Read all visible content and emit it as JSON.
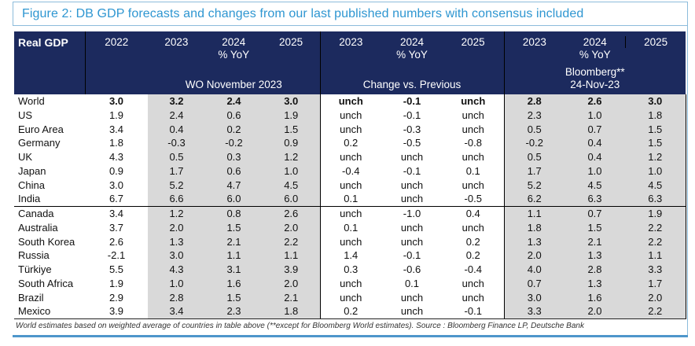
{
  "colors": {
    "header_bg": "#1c2a5e",
    "title_text": "#2e96d1",
    "frame_border": "#8cbcdb",
    "bottom_bar": "#4e96cb",
    "shaded_column": "#d9d9d9",
    "grid_line": "#000000"
  },
  "chart_data": {
    "type": "table",
    "title": "Figure 2: DB GDP forecasts and changes from our last published numbers with consensus included",
    "corner_label": "Real GDP",
    "column_2022": "2022",
    "groups": [
      {
        "years": [
          "2023",
          "2024",
          "2025"
        ],
        "unit": "% YoY",
        "label_lines": [
          "WO November 2023"
        ]
      },
      {
        "years": [
          "2023",
          "2024",
          "2025"
        ],
        "unit": "% YoY",
        "label_lines": [
          "Change vs. Previous"
        ]
      },
      {
        "years": [
          "2023",
          "2024",
          "2025"
        ],
        "unit": "% YoY",
        "label_lines": [
          "Bloomberg**",
          "24-Nov-23"
        ]
      }
    ],
    "rows": [
      {
        "country": "World",
        "bold": true,
        "y2022": "3.0",
        "wo_nov_2023": [
          "3.2",
          "2.4",
          "3.0"
        ],
        "change_vs_previous": [
          "unch",
          "-0.1",
          "unch"
        ],
        "bloomberg": [
          "2.8",
          "2.6",
          "3.0"
        ]
      },
      {
        "country": "US",
        "bold": false,
        "y2022": "1.9",
        "wo_nov_2023": [
          "2.4",
          "0.6",
          "1.9"
        ],
        "change_vs_previous": [
          "unch",
          "-0.1",
          "unch"
        ],
        "bloomberg": [
          "2.3",
          "1.0",
          "1.8"
        ]
      },
      {
        "country": "Euro Area",
        "bold": false,
        "y2022": "3.4",
        "wo_nov_2023": [
          "0.4",
          "0.2",
          "1.5"
        ],
        "change_vs_previous": [
          "unch",
          "-0.3",
          "unch"
        ],
        "bloomberg": [
          "0.5",
          "0.7",
          "1.5"
        ]
      },
      {
        "country": "Germany",
        "bold": false,
        "y2022": "1.8",
        "wo_nov_2023": [
          "-0.3",
          "-0.2",
          "0.9"
        ],
        "change_vs_previous": [
          "0.2",
          "-0.5",
          "-0.8"
        ],
        "bloomberg": [
          "-0.2",
          "0.4",
          "1.5"
        ]
      },
      {
        "country": "UK",
        "bold": false,
        "y2022": "4.3",
        "wo_nov_2023": [
          "0.5",
          "0.3",
          "1.2"
        ],
        "change_vs_previous": [
          "unch",
          "unch",
          "unch"
        ],
        "bloomberg": [
          "0.5",
          "0.4",
          "1.2"
        ]
      },
      {
        "country": "Japan",
        "bold": false,
        "y2022": "0.9",
        "wo_nov_2023": [
          "1.7",
          "0.6",
          "1.0"
        ],
        "change_vs_previous": [
          "-0.4",
          "-0.1",
          "0.1"
        ],
        "bloomberg": [
          "1.7",
          "1.0",
          "1.0"
        ]
      },
      {
        "country": "China",
        "bold": false,
        "y2022": "3.0",
        "wo_nov_2023": [
          "5.2",
          "4.7",
          "4.5"
        ],
        "change_vs_previous": [
          "unch",
          "unch",
          "unch"
        ],
        "bloomberg": [
          "5.2",
          "4.5",
          "4.5"
        ]
      },
      {
        "country": "India",
        "bold": false,
        "y2022": "6.7",
        "wo_nov_2023": [
          "6.6",
          "6.0",
          "6.0"
        ],
        "change_vs_previous": [
          "0.1",
          "unch",
          "-0.5"
        ],
        "bloomberg": [
          "6.2",
          "6.3",
          "6.3"
        ]
      },
      {
        "country": "Canada",
        "bold": false,
        "y2022": "3.4",
        "wo_nov_2023": [
          "1.2",
          "0.8",
          "2.6"
        ],
        "change_vs_previous": [
          "unch",
          "-1.0",
          "0.4"
        ],
        "bloomberg": [
          "1.1",
          "0.7",
          "1.9"
        ]
      },
      {
        "country": "Australia",
        "bold": false,
        "y2022": "3.7",
        "wo_nov_2023": [
          "2.0",
          "1.5",
          "2.0"
        ],
        "change_vs_previous": [
          "0.1",
          "unch",
          "unch"
        ],
        "bloomberg": [
          "1.8",
          "1.5",
          "2.2"
        ]
      },
      {
        "country": "South Korea",
        "bold": false,
        "y2022": "2.6",
        "wo_nov_2023": [
          "1.3",
          "2.1",
          "2.2"
        ],
        "change_vs_previous": [
          "unch",
          "unch",
          "0.2"
        ],
        "bloomberg": [
          "1.3",
          "2.1",
          "2.2"
        ]
      },
      {
        "country": "Russia",
        "bold": false,
        "y2022": "-2.1",
        "wo_nov_2023": [
          "3.0",
          "1.1",
          "1.1"
        ],
        "change_vs_previous": [
          "1.4",
          "-0.1",
          "0.2"
        ],
        "bloomberg": [
          "2.0",
          "1.3",
          "1.1"
        ]
      },
      {
        "country": "Türkiye",
        "bold": false,
        "y2022": "5.5",
        "wo_nov_2023": [
          "4.3",
          "3.1",
          "3.9"
        ],
        "change_vs_previous": [
          "0.3",
          "-0.6",
          "-0.4"
        ],
        "bloomberg": [
          "4.0",
          "2.8",
          "3.3"
        ]
      },
      {
        "country": "South Africa",
        "bold": false,
        "y2022": "1.9",
        "wo_nov_2023": [
          "1.0",
          "1.6",
          "2.0"
        ],
        "change_vs_previous": [
          "unch",
          "0.1",
          "unch"
        ],
        "bloomberg": [
          "0.7",
          "1.3",
          "1.7"
        ]
      },
      {
        "country": "Brazil",
        "bold": false,
        "y2022": "2.9",
        "wo_nov_2023": [
          "2.8",
          "1.5",
          "2.1"
        ],
        "change_vs_previous": [
          "unch",
          "unch",
          "unch"
        ],
        "bloomberg": [
          "3.0",
          "1.6",
          "2.0"
        ]
      },
      {
        "country": "Mexico",
        "bold": false,
        "y2022": "3.9",
        "wo_nov_2023": [
          "3.4",
          "2.3",
          "1.8"
        ],
        "change_vs_previous": [
          "0.2",
          "unch",
          "-0.1"
        ],
        "bloomberg": [
          "3.3",
          "2.0",
          "2.2"
        ]
      }
    ],
    "footnote": "World estimates based on weighted average of countries in table above (**except for Bloomberg World estimates). Source : Bloomberg Finance LP, Deutsche Bank"
  }
}
